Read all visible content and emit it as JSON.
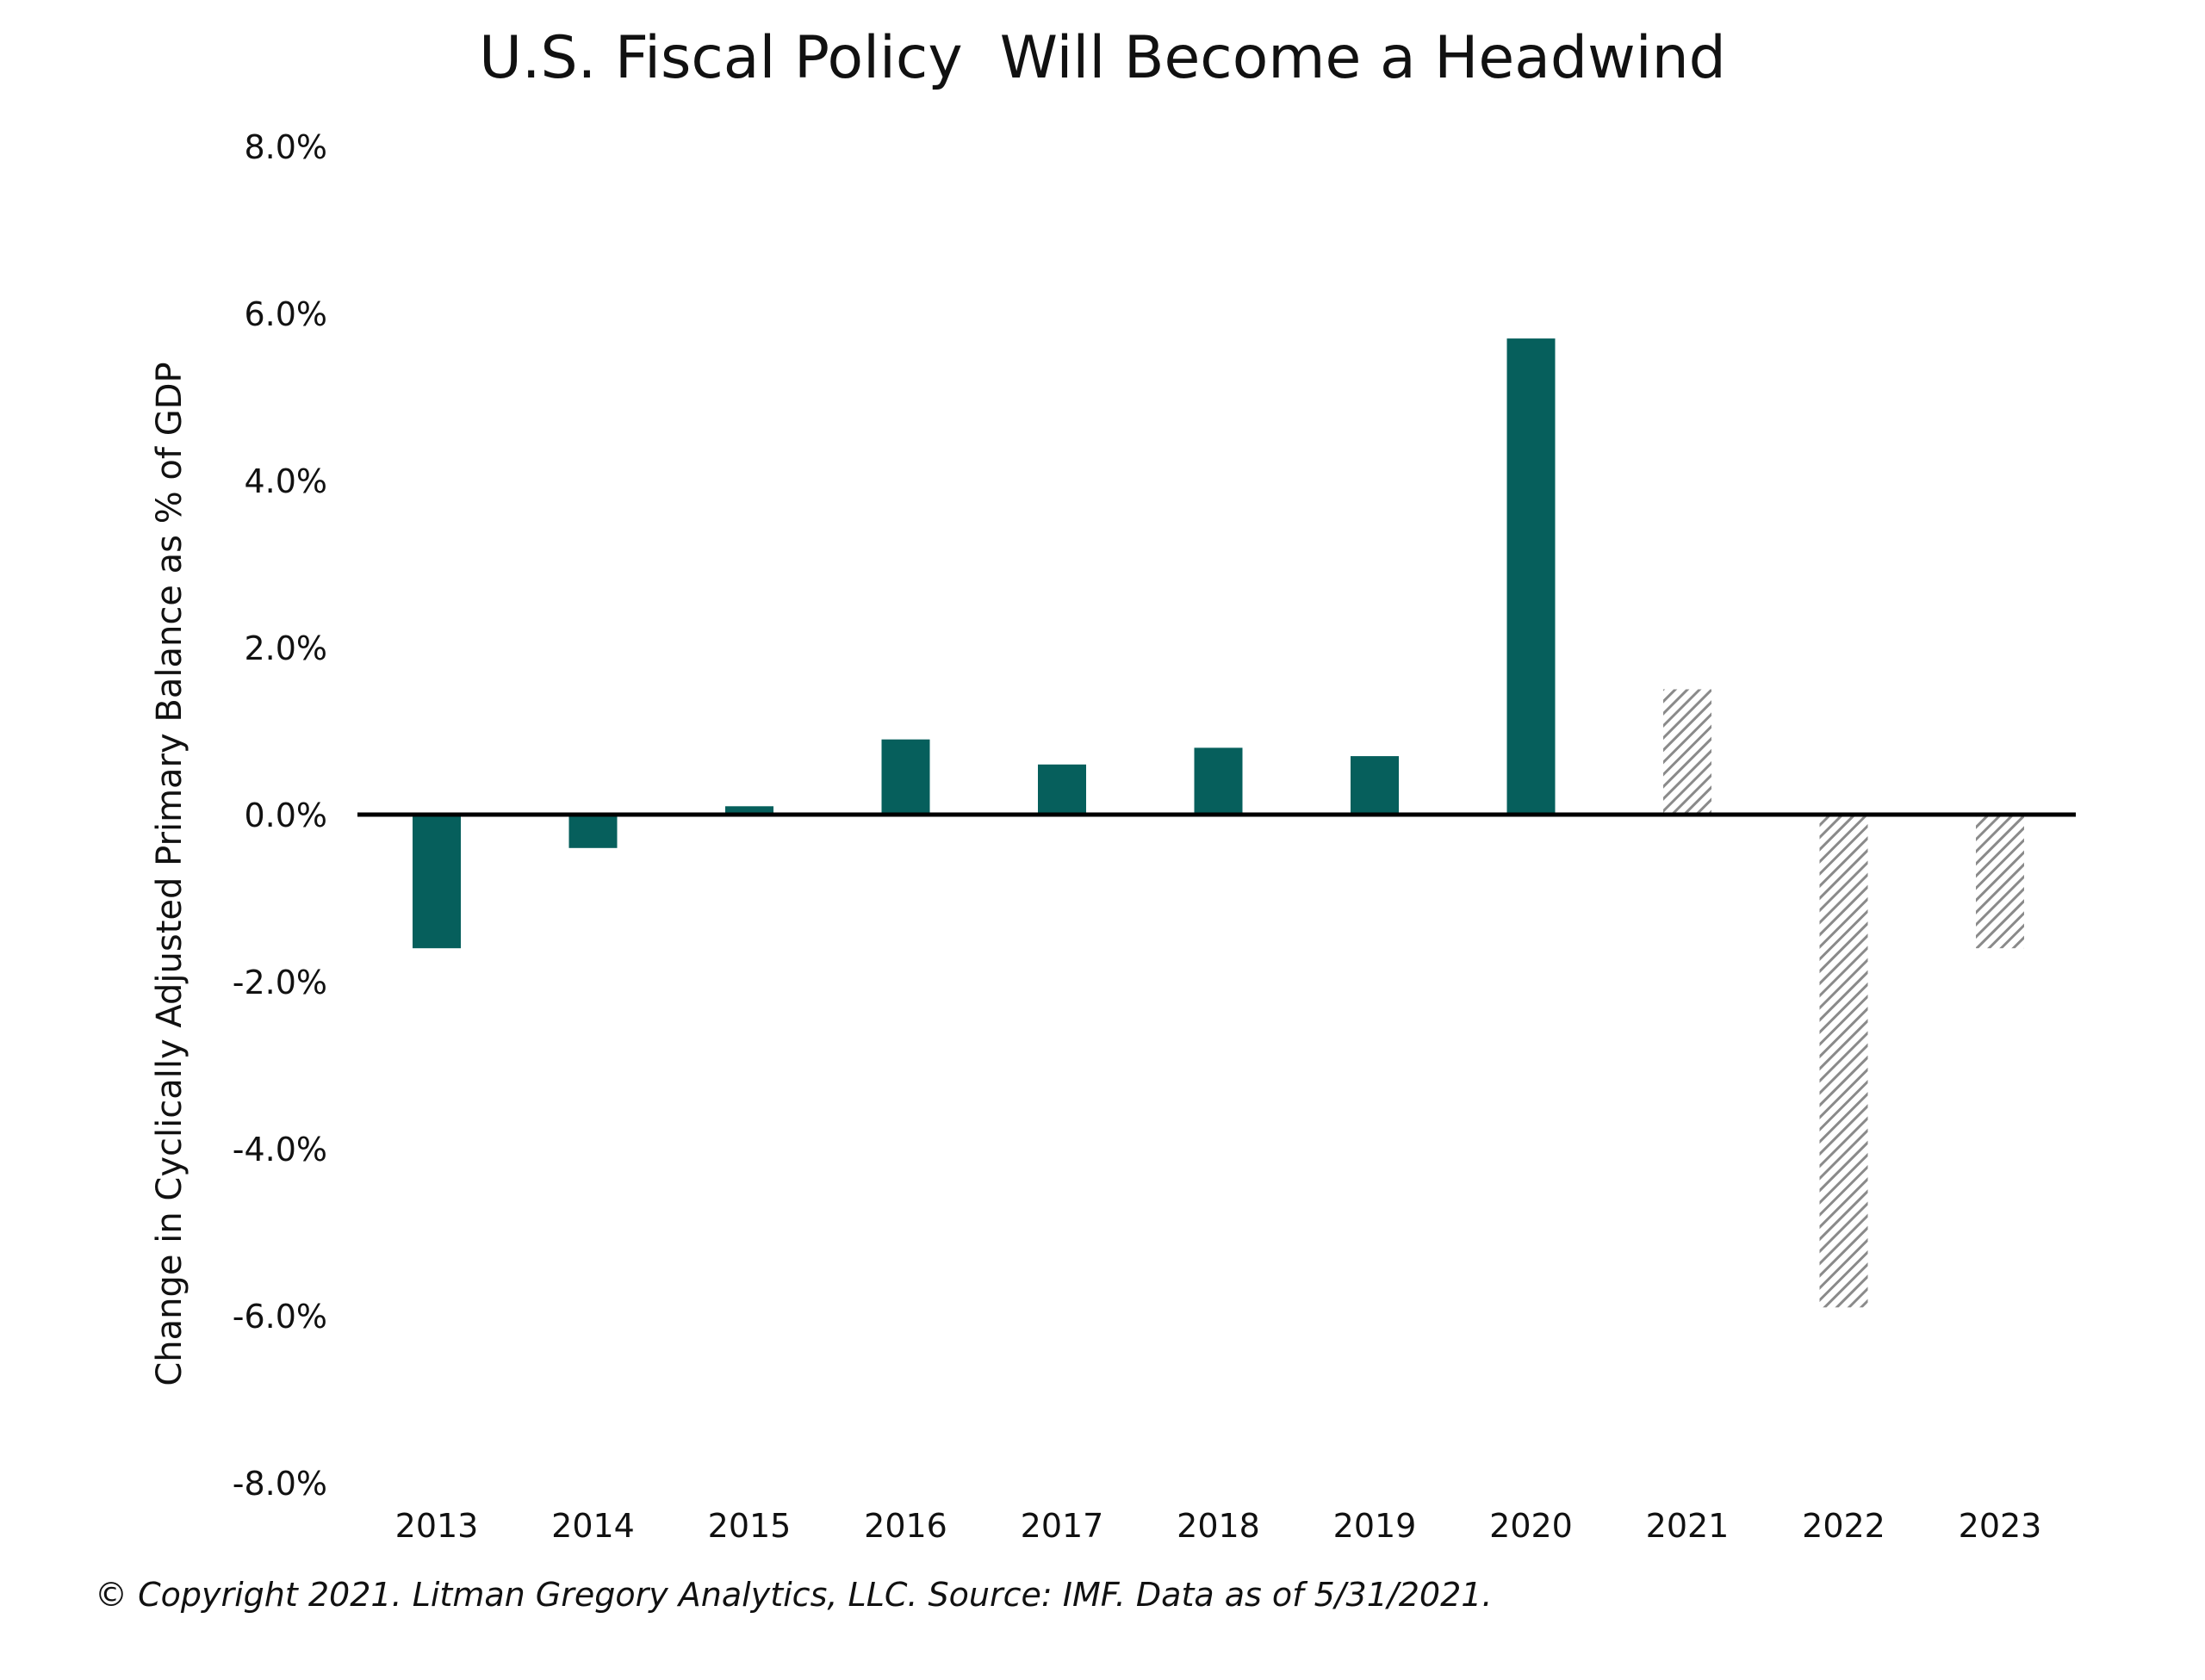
{
  "chart_data": {
    "type": "bar",
    "title": "U.S. Fiscal Policy  Will Become a Headwind",
    "ylabel": "Change in Cyclically Adjusted Primary Balance as % of GDP",
    "xlabel": "",
    "categories": [
      "2013",
      "2014",
      "2015",
      "2016",
      "2017",
      "2018",
      "2019",
      "2020",
      "2021",
      "2022",
      "2023"
    ],
    "values": [
      -1.6,
      -0.4,
      0.1,
      0.9,
      0.6,
      0.8,
      0.7,
      5.7,
      1.5,
      -5.9,
      -1.6
    ],
    "projected": [
      false,
      false,
      false,
      false,
      false,
      false,
      false,
      false,
      true,
      true,
      true
    ],
    "ylim": [
      -8,
      8
    ],
    "yticks": [
      8,
      6,
      4,
      2,
      0,
      -2,
      -4,
      -6,
      -8
    ],
    "ytick_labels": [
      "8.0%",
      "6.0%",
      "4.0%",
      "2.0%",
      "0.0%",
      "-2.0%",
      "-4.0%",
      "-6.0%",
      "-8.0%"
    ],
    "grid": false,
    "colors": {
      "actual": "#065f5c",
      "projected": "#8a8a8a",
      "zero_line": "#000000"
    }
  },
  "footnote": "© Copyright 2021. Litman Gregory Analytics, LLC. Source: IMF. Data as of 5/31/2021."
}
